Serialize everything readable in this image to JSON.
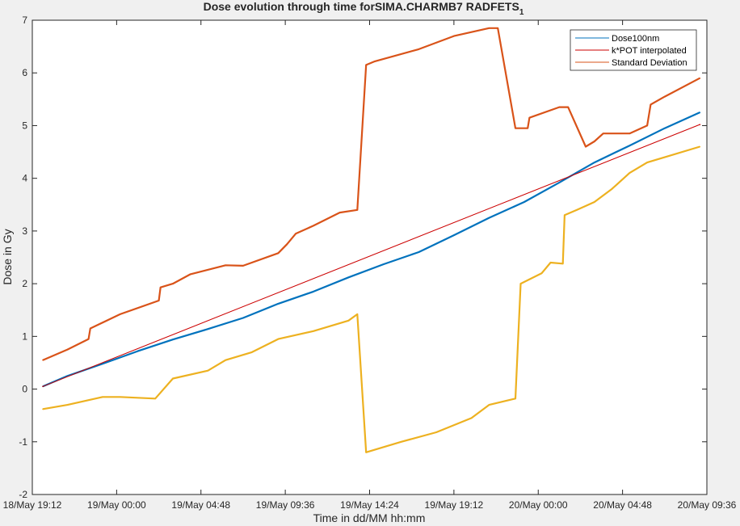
{
  "chart_data": {
    "type": "line",
    "title": "Dose evolution through time forSIMA.CHARMB7 RADFETS",
    "title_subscript": "1",
    "xlabel": "Time in dd/MM hh:mm",
    "ylabel": "Dose in Gy",
    "xlim": [
      "18/May 19:12",
      "20/May 09:36"
    ],
    "ylim": [
      -2,
      7
    ],
    "x_tick_labels": [
      "18/May 19:12",
      "19/May 00:00",
      "19/May 04:48",
      "19/May 09:36",
      "19/May 14:24",
      "19/May 19:12",
      "20/May 00:00",
      "20/May 04:48",
      "20/May 09:36"
    ],
    "y_ticks": [
      -2,
      -1,
      0,
      1,
      2,
      3,
      4,
      5,
      6,
      7
    ],
    "grid": false,
    "legend_position": "top-right",
    "legend": [
      "Dose100nm",
      "k*POT interpolated",
      "Standard Deviation"
    ],
    "x_units": "hours since 18/May 19:12",
    "series": [
      {
        "name": "Dose100nm",
        "color": "#0072bd",
        "x": [
          0.6,
          2,
          4,
          6,
          8,
          10,
          12,
          14,
          16,
          18,
          20,
          22,
          24,
          26,
          28,
          30,
          32,
          34,
          36,
          38
        ],
        "values": [
          0.05,
          0.25,
          0.48,
          0.72,
          0.94,
          1.14,
          1.35,
          1.62,
          1.85,
          2.12,
          2.37,
          2.6,
          2.92,
          3.25,
          3.55,
          3.92,
          4.3,
          4.62,
          4.95,
          5.25
        ]
      },
      {
        "name": "k*POT interpolated",
        "color": "#cc0000",
        "x": [
          0.6,
          38
        ],
        "values": [
          0.05,
          5.02
        ]
      },
      {
        "name": "Standard Deviation",
        "color": "#d95319",
        "x": [
          0.6,
          2,
          3.2,
          3.3,
          5,
          7.2,
          7.3,
          8,
          9,
          11,
          12,
          14,
          14.5,
          15,
          16,
          17.5,
          18.5,
          19,
          19.5,
          22,
          24,
          26,
          26.5,
          27.5,
          28.2,
          28.3,
          30,
          30.5,
          31.5,
          32,
          32.5,
          34,
          35,
          35.2,
          36,
          38
        ],
        "values": [
          0.55,
          0.75,
          0.95,
          1.15,
          1.42,
          1.68,
          1.93,
          2.0,
          2.18,
          2.35,
          2.34,
          2.58,
          2.75,
          2.95,
          3.1,
          3.35,
          3.4,
          6.15,
          6.22,
          6.45,
          6.7,
          6.85,
          6.85,
          4.95,
          4.95,
          5.15,
          5.35,
          5.35,
          4.6,
          4.7,
          4.85,
          4.85,
          5.0,
          5.4,
          5.55,
          5.9
        ]
      },
      {
        "name": "Standard Deviation",
        "color": "#edb120",
        "x": [
          0.6,
          2,
          4,
          5,
          7,
          8,
          10,
          11,
          12.5,
          14,
          16,
          18,
          18.5,
          19,
          19.5,
          21,
          23,
          25,
          26,
          27.5,
          27.8,
          29,
          29.5,
          30.2,
          30.3,
          31,
          32,
          33,
          34,
          35,
          35.5,
          36,
          38
        ],
        "values": [
          -0.38,
          -0.3,
          -0.15,
          -0.15,
          -0.18,
          0.2,
          0.35,
          0.55,
          0.7,
          0.95,
          1.1,
          1.3,
          1.42,
          -1.2,
          -1.15,
          -1.0,
          -0.82,
          -0.55,
          -0.3,
          -0.18,
          2.0,
          2.2,
          2.4,
          2.38,
          3.3,
          3.4,
          3.55,
          3.8,
          4.1,
          4.3,
          4.35,
          4.4,
          4.6
        ]
      }
    ]
  }
}
